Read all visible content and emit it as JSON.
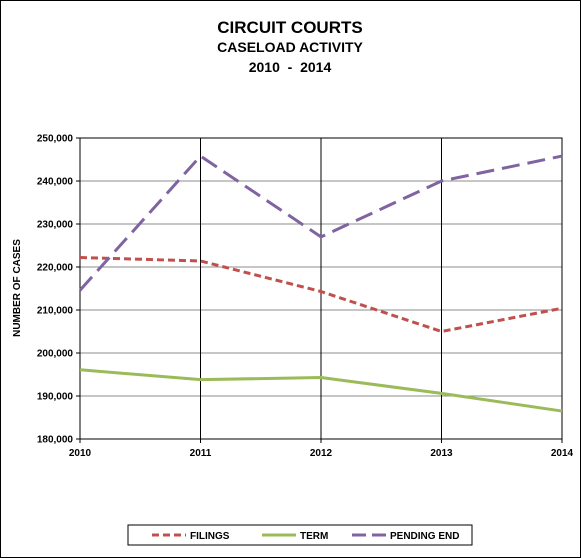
{
  "chart_data": {
    "type": "line",
    "title": "CIRCUIT COURTS",
    "subtitle": "CASELOAD ACTIVITY",
    "subtitle2": "2010  -  2014",
    "xlabel": "",
    "ylabel": "NUMBER OF CASES",
    "x": [
      "2010",
      "2011",
      "2012",
      "2013",
      "2014"
    ],
    "ylim": [
      180000,
      250000
    ],
    "y_ticks": [
      "180,000",
      "190,000",
      "200,000",
      "210,000",
      "220,000",
      "230,000",
      "240,000",
      "250,000"
    ],
    "grid": true,
    "legend_position": "bottom",
    "series": [
      {
        "name": "FILINGS",
        "values": [
          222200,
          221400,
          214300,
          205000,
          210400
        ],
        "color": "#c0504d",
        "style": "short-dash"
      },
      {
        "name": "TERM",
        "values": [
          196100,
          193800,
          194300,
          190600,
          186500
        ],
        "color": "#9bbb59",
        "style": "solid"
      },
      {
        "name": "PENDING END",
        "values": [
          214600,
          245800,
          227000,
          240000,
          245800
        ],
        "color": "#8064a2",
        "style": "long-dash"
      }
    ]
  }
}
